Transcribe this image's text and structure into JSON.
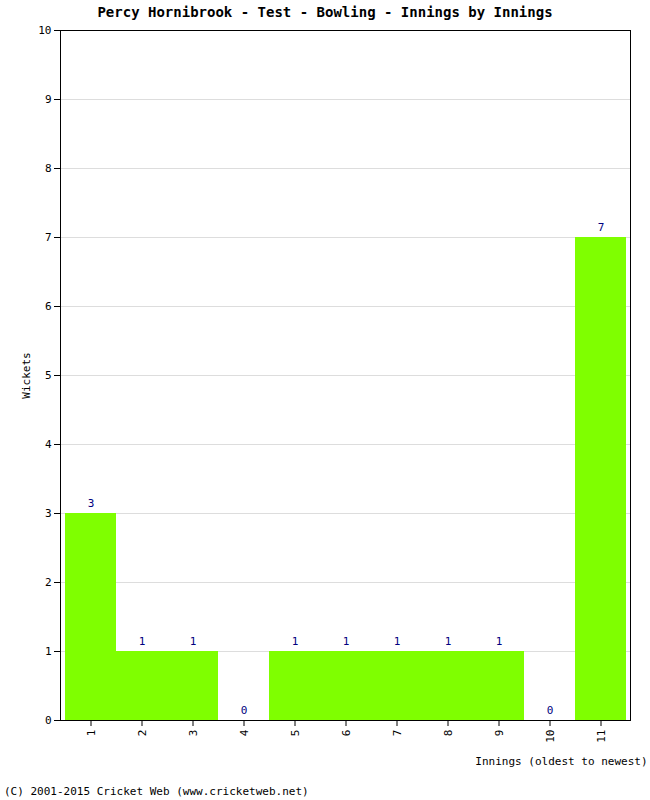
{
  "chart_data": {
    "type": "bar",
    "title": "Percy Hornibrook - Test - Bowling - Innings by Innings",
    "x_label": "Innings (oldest to newest)",
    "y_label": "Wickets",
    "caption": "(C) 2001-2015 Cricket Web (www.cricketweb.net)",
    "categories": [
      "1",
      "2",
      "3",
      "4",
      "5",
      "6",
      "7",
      "8",
      "9",
      "10",
      "11"
    ],
    "values": [
      3,
      1,
      1,
      0,
      1,
      1,
      1,
      1,
      1,
      0,
      7
    ],
    "color": "#7fff00",
    "ylim": [
      0,
      10
    ],
    "yticks": [
      0,
      1,
      2,
      3,
      4,
      5,
      6,
      7,
      8,
      9,
      10
    ],
    "grid": true,
    "data_labels": true
  }
}
